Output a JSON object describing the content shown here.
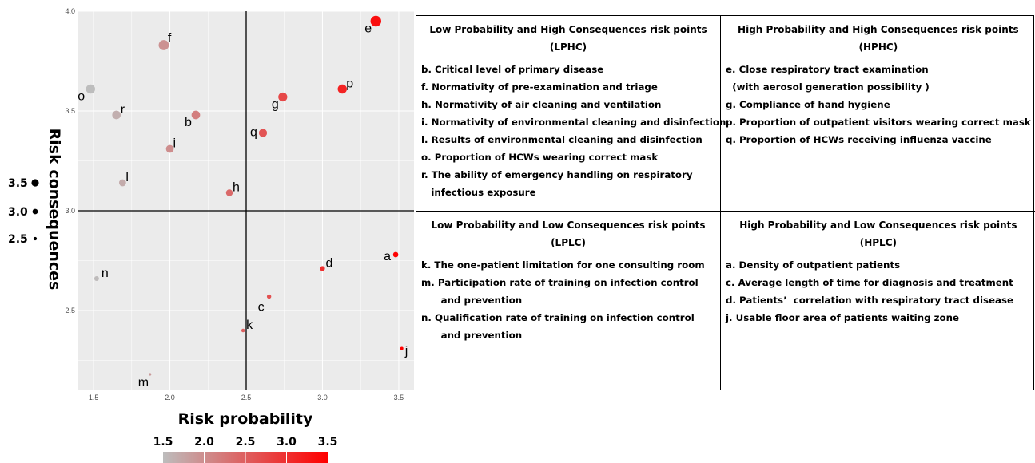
{
  "chart_data": {
    "type": "scatter",
    "xlabel": "Risk probability",
    "ylabel": "Risk consequences",
    "xlim": [
      1.4,
      3.6
    ],
    "ylim": [
      2.1,
      4.0
    ],
    "x_ticks": [
      "1.5",
      "2.0",
      "2.5",
      "3.0",
      "3.5"
    ],
    "y_ticks": [
      "2.5",
      "3.0",
      "3.5",
      "4.0"
    ],
    "reference_lines": {
      "x": 2.5,
      "y": 3.0
    },
    "grid": true,
    "background": "#ebebeb",
    "color_scale": {
      "low": "#bdbdbd",
      "high": "#ff0000",
      "domain": [
        1.5,
        3.5
      ]
    },
    "points": [
      {
        "label": "a",
        "x": 3.48,
        "y": 2.78,
        "color_value": 3.48
      },
      {
        "label": "b",
        "x": 2.17,
        "y": 3.48,
        "color_value": 2.17
      },
      {
        "label": "c",
        "x": 2.65,
        "y": 2.57,
        "color_value": 2.65
      },
      {
        "label": "d",
        "x": 3.0,
        "y": 2.71,
        "color_value": 3.0
      },
      {
        "label": "e",
        "x": 3.35,
        "y": 3.95,
        "color_value": 3.35
      },
      {
        "label": "f",
        "x": 1.96,
        "y": 3.83,
        "color_value": 1.96
      },
      {
        "label": "g",
        "x": 2.74,
        "y": 3.57,
        "color_value": 2.74
      },
      {
        "label": "h",
        "x": 2.39,
        "y": 3.09,
        "color_value": 2.39
      },
      {
        "label": "i",
        "x": 2.0,
        "y": 3.31,
        "color_value": 2.0
      },
      {
        "label": "j",
        "x": 3.52,
        "y": 2.31,
        "color_value": 3.52
      },
      {
        "label": "k",
        "x": 2.48,
        "y": 2.4,
        "color_value": 2.48
      },
      {
        "label": "l",
        "x": 1.69,
        "y": 3.14,
        "color_value": 1.69
      },
      {
        "label": "m",
        "x": 1.87,
        "y": 2.18,
        "color_value": 1.87
      },
      {
        "label": "n",
        "x": 1.52,
        "y": 2.66,
        "color_value": 1.52
      },
      {
        "label": "o",
        "x": 1.48,
        "y": 3.61,
        "color_value": 1.48
      },
      {
        "label": "p",
        "x": 3.13,
        "y": 3.61,
        "color_value": 3.13
      },
      {
        "label": "q",
        "x": 2.61,
        "y": 3.39,
        "color_value": 2.61
      },
      {
        "label": "r",
        "x": 1.65,
        "y": 3.48,
        "color_value": 1.65
      }
    ],
    "size_legend": [
      "3.5",
      "3.0",
      "2.5"
    ],
    "color_legend": [
      "1.5",
      "2.0",
      "2.5",
      "3.0",
      "3.5"
    ]
  },
  "quadrants": {
    "lphc": {
      "title": "Low Probability and High Consequences risk points",
      "abbr": "(LPHC)",
      "items": [
        "b. Critical level of primary disease",
        "f. Normativity of pre-examination and triage",
        "h. Normativity of air cleaning and ventilation",
        "i. Normativity of environmental cleaning and disinfection",
        "l. Results of environmental cleaning and disinfection",
        "o. Proportion of HCWs wearing correct mask",
        "r. The ability of emergency handling on respiratory",
        "   infectious exposure"
      ]
    },
    "hphc": {
      "title": "High Probability and High Consequences risk points",
      "abbr": "(HPHC)",
      "items": [
        "e. Close respiratory tract examination",
        "  (with aerosol generation possibility )",
        "g. Compliance of hand hygiene",
        "p. Proportion of outpatient visitors wearing correct mask",
        "q. Proportion of HCWs receiving influenza vaccine"
      ]
    },
    "lplc": {
      "title": "Low Probability and Low Consequences risk points",
      "abbr": "(LPLC)",
      "items": [
        "k. The one-patient limitation for one consulting room",
        "m. Participation rate of training on infection control",
        "      and prevention",
        "n. Qualification rate of training on infection control",
        "      and prevention"
      ]
    },
    "hplc": {
      "title": "High Probability and Low Consequences risk points",
      "abbr": "(HPLC)",
      "items": [
        "a. Density of outpatient patients",
        "c. Average length of time for diagnosis and treatment",
        "d. Patients’  correlation with respiratory tract disease",
        "j. Usable floor area of patients waiting zone"
      ]
    }
  }
}
